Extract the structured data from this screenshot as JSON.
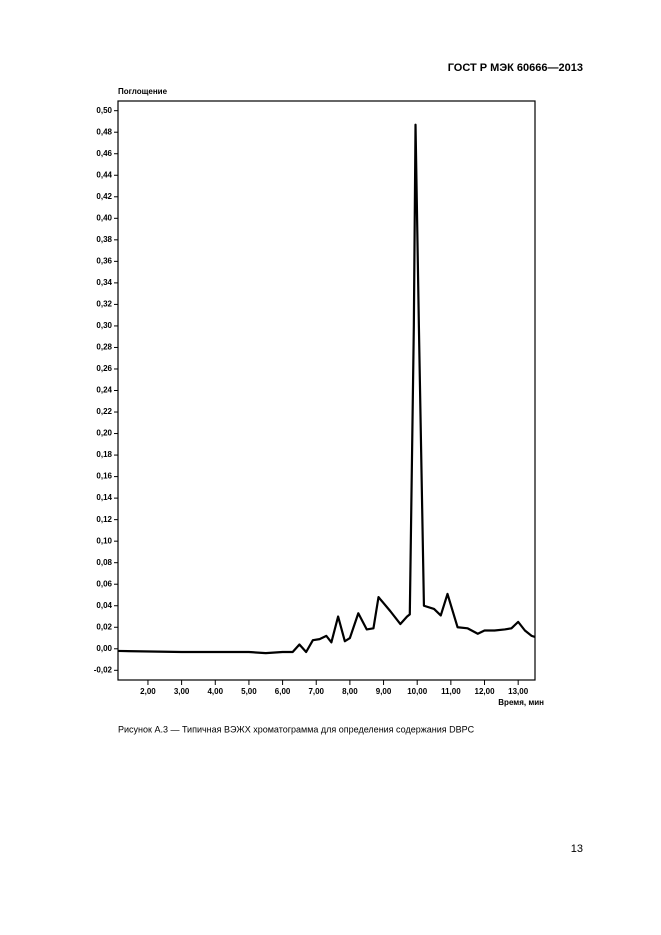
{
  "header": "ГОСТ Р МЭК 60666—2013",
  "chart_data": {
    "type": "line",
    "y_label": "Поглощение",
    "x_label": "Время, мин",
    "color": "#000000",
    "x": [
      1.11,
      3.0,
      5.0,
      5.5,
      6.0,
      6.3,
      6.5,
      6.7,
      6.9,
      7.1,
      7.3,
      7.45,
      7.65,
      7.85,
      8.0,
      8.25,
      8.5,
      8.7,
      8.85,
      9.2,
      9.5,
      9.7,
      9.78,
      9.9,
      9.95,
      10.05,
      10.2,
      10.5,
      10.7,
      10.9,
      11.2,
      11.5,
      11.8,
      12.0,
      12.3,
      12.6,
      12.8,
      13.0,
      13.2,
      13.4,
      13.5
    ],
    "series": [
      {
        "color": "#000000",
        "values": [
          -0.002,
          -0.003,
          -0.003,
          -0.004,
          -0.003,
          -0.003,
          0.004,
          -0.003,
          0.008,
          0.009,
          0.012,
          0.006,
          0.03,
          0.007,
          0.01,
          0.033,
          0.018,
          0.019,
          0.048,
          0.035,
          0.023,
          0.03,
          0.032,
          0.3,
          0.487,
          0.3,
          0.04,
          0.037,
          0.031,
          0.051,
          0.02,
          0.019,
          0.014,
          0.017,
          0.017,
          0.018,
          0.019,
          0.025,
          0.017,
          0.012,
          0.011
        ]
      }
    ],
    "xlim": [
      1.11,
      13.5
    ],
    "ylim": [
      -0.029,
      0.509
    ],
    "xticks": [
      {
        "value": 2,
        "label": "2,00"
      },
      {
        "value": 3,
        "label": "3,00"
      },
      {
        "value": 4,
        "label": "4,00"
      },
      {
        "value": 5,
        "label": "5,00"
      },
      {
        "value": 6,
        "label": "6,00"
      },
      {
        "value": 7,
        "label": "7,00"
      },
      {
        "value": 8,
        "label": "8,00"
      },
      {
        "value": 9,
        "label": "9,00"
      },
      {
        "value": 10,
        "label": "10,00"
      },
      {
        "value": 11,
        "label": "11,00"
      },
      {
        "value": 12,
        "label": "12,00"
      },
      {
        "value": 13,
        "label": "13,00"
      }
    ],
    "yticks": [
      {
        "value": -0.02,
        "label": "-0,02"
      },
      {
        "value": 0,
        "label": "0,00"
      },
      {
        "value": 0.02,
        "label": "0,02"
      },
      {
        "value": 0.04,
        "label": "0,04"
      },
      {
        "value": 0.06,
        "label": "0,06"
      },
      {
        "value": 0.08,
        "label": "0,08"
      },
      {
        "value": 0.1,
        "label": "0,10"
      },
      {
        "value": 0.12,
        "label": "0,12"
      },
      {
        "value": 0.14,
        "label": "0,14"
      },
      {
        "value": 0.16,
        "label": "0,16"
      },
      {
        "value": 0.18,
        "label": "0,18"
      },
      {
        "value": 0.2,
        "label": "0,20"
      },
      {
        "value": 0.22,
        "label": "0,22"
      },
      {
        "value": 0.24,
        "label": "0,24"
      },
      {
        "value": 0.26,
        "label": "0,26"
      },
      {
        "value": 0.28,
        "label": "0,28"
      },
      {
        "value": 0.3,
        "label": "0,30"
      },
      {
        "value": 0.32,
        "label": "0,32"
      },
      {
        "value": 0.34,
        "label": "0,34"
      },
      {
        "value": 0.36,
        "label": "0,36"
      },
      {
        "value": 0.38,
        "label": "0,38"
      },
      {
        "value": 0.4,
        "label": "0,40"
      },
      {
        "value": 0.42,
        "label": "0,42"
      },
      {
        "value": 0.44,
        "label": "0,44"
      },
      {
        "value": 0.46,
        "label": "0,46"
      },
      {
        "value": 0.48,
        "label": "0,48"
      },
      {
        "value": 0.5,
        "label": "0,50"
      }
    ]
  },
  "caption": "Рисунок А.3 — Типичная ВЭЖХ хроматограмма для определения содержания DBPC",
  "page_number": "13"
}
